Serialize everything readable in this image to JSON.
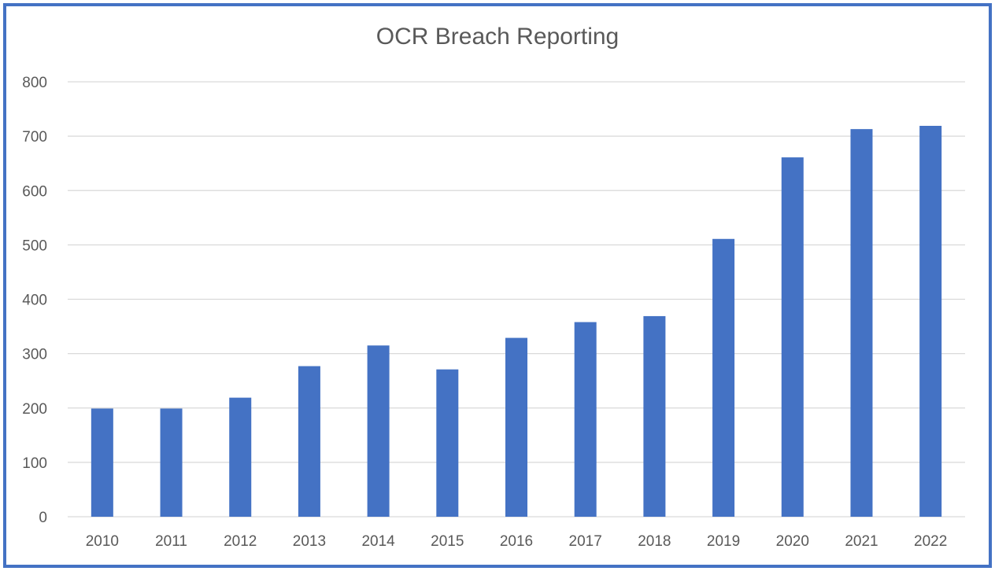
{
  "chart_data": {
    "type": "bar",
    "title": "OCR Breach Reporting",
    "xlabel": "",
    "ylabel": "",
    "categories": [
      "2010",
      "2011",
      "2012",
      "2013",
      "2014",
      "2015",
      "2016",
      "2017",
      "2018",
      "2019",
      "2020",
      "2021",
      "2022"
    ],
    "values": [
      199,
      199,
      219,
      277,
      315,
      271,
      329,
      358,
      369,
      511,
      661,
      713,
      719
    ],
    "ylim": [
      0,
      800
    ],
    "yticks": [
      "0",
      "100",
      "200",
      "300",
      "400",
      "500",
      "600",
      "700",
      "800"
    ],
    "grid": true,
    "legend": "none",
    "bar_color": "#4472c4",
    "grid_color": "#d9d9d9",
    "frame_color": "#4472c4"
  }
}
